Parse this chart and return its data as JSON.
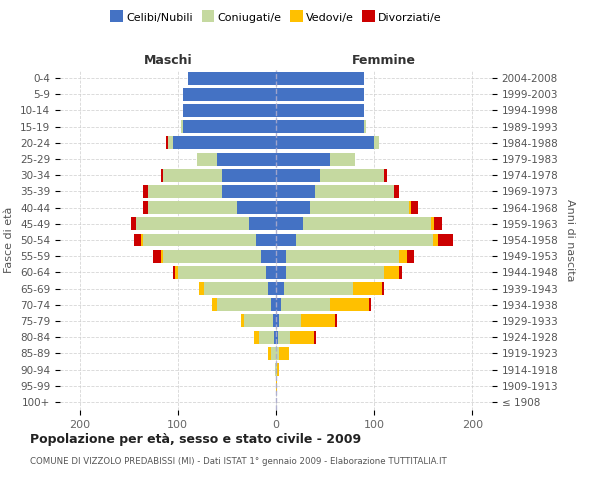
{
  "age_groups": [
    "100+",
    "95-99",
    "90-94",
    "85-89",
    "80-84",
    "75-79",
    "70-74",
    "65-69",
    "60-64",
    "55-59",
    "50-54",
    "45-49",
    "40-44",
    "35-39",
    "30-34",
    "25-29",
    "20-24",
    "15-19",
    "10-14",
    "5-9",
    "0-4"
  ],
  "birth_years": [
    "≤ 1908",
    "1909-1913",
    "1914-1918",
    "1919-1923",
    "1924-1928",
    "1929-1933",
    "1934-1938",
    "1939-1943",
    "1944-1948",
    "1949-1953",
    "1954-1958",
    "1959-1963",
    "1964-1968",
    "1969-1973",
    "1974-1978",
    "1979-1983",
    "1984-1988",
    "1989-1993",
    "1994-1998",
    "1999-2003",
    "2004-2008"
  ],
  "colors": {
    "celibi": "#4472c4",
    "coniugati": "#c5d9a0",
    "vedovi": "#ffc000",
    "divorziati": "#cc0000"
  },
  "maschi": {
    "celibi": [
      0,
      0,
      0,
      0,
      2,
      3,
      5,
      8,
      10,
      15,
      20,
      28,
      40,
      55,
      55,
      60,
      105,
      95,
      95,
      95,
      90
    ],
    "coniugati": [
      0,
      0,
      1,
      5,
      15,
      30,
      55,
      65,
      90,
      100,
      115,
      115,
      90,
      75,
      60,
      20,
      5,
      2,
      0,
      0,
      0
    ],
    "vedovi": [
      0,
      0,
      0,
      3,
      5,
      3,
      5,
      5,
      3,
      2,
      2,
      0,
      0,
      0,
      0,
      0,
      0,
      0,
      0,
      0,
      0
    ],
    "divorziati": [
      0,
      0,
      0,
      0,
      0,
      0,
      0,
      0,
      2,
      8,
      8,
      5,
      5,
      5,
      2,
      0,
      2,
      0,
      0,
      0,
      0
    ]
  },
  "femmine": {
    "celibi": [
      0,
      0,
      0,
      0,
      2,
      3,
      5,
      8,
      10,
      10,
      20,
      28,
      35,
      40,
      45,
      55,
      100,
      90,
      90,
      90,
      90
    ],
    "coniugati": [
      0,
      0,
      1,
      3,
      12,
      22,
      50,
      70,
      100,
      115,
      140,
      130,
      100,
      80,
      65,
      25,
      5,
      2,
      0,
      0,
      0
    ],
    "vedovi": [
      0,
      1,
      2,
      10,
      25,
      35,
      40,
      30,
      15,
      8,
      5,
      3,
      2,
      0,
      0,
      0,
      0,
      0,
      0,
      0,
      0
    ],
    "divorziati": [
      0,
      0,
      0,
      0,
      2,
      2,
      2,
      2,
      3,
      8,
      15,
      8,
      8,
      5,
      3,
      0,
      0,
      0,
      0,
      0,
      0
    ]
  },
  "xlim": [
    -220,
    220
  ],
  "xticks": [
    -200,
    -100,
    0,
    100,
    200
  ],
  "xticklabels": [
    "200",
    "100",
    "0",
    "100",
    "200"
  ],
  "title": "Popolazione per età, sesso e stato civile - 2009",
  "subtitle": "COMUNE DI VIZZOLO PREDABISSI (MI) - Dati ISTAT 1° gennaio 2009 - Elaborazione TUTTITALIA.IT",
  "ylabel_left": "Fasce di età",
  "ylabel_right": "Anni di nascita",
  "label_maschi": "Maschi",
  "label_femmine": "Femmine",
  "legend_labels": [
    "Celibi/Nubili",
    "Coniugati/e",
    "Vedovi/e",
    "Divorziati/e"
  ],
  "bg_color": "#ffffff",
  "grid_color": "#cccccc"
}
